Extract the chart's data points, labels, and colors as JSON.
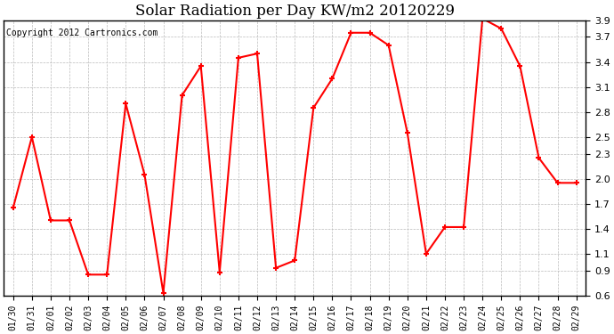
{
  "title": "Solar Radiation per Day KW/m2 20120229",
  "copyright": "Copyright 2012 Cartronics.com",
  "dates": [
    "01/30",
    "01/31",
    "02/01",
    "02/02",
    "02/03",
    "02/04",
    "02/05",
    "02/06",
    "02/07",
    "02/08",
    "02/09",
    "02/10",
    "02/11",
    "02/12",
    "02/13",
    "02/14",
    "02/15",
    "02/16",
    "02/17",
    "02/18",
    "02/19",
    "02/20",
    "02/21",
    "02/22",
    "02/23",
    "02/24",
    "02/25",
    "02/26",
    "02/27",
    "02/28",
    "02/29"
  ],
  "values": [
    1.65,
    2.5,
    1.5,
    1.5,
    0.85,
    0.85,
    2.9,
    2.05,
    0.63,
    3.0,
    3.35,
    0.88,
    3.45,
    3.5,
    0.93,
    1.02,
    2.85,
    3.2,
    3.75,
    3.75,
    3.6,
    2.55,
    1.1,
    1.42,
    1.42,
    3.92,
    3.8,
    3.35,
    2.25,
    1.95,
    1.95
  ],
  "ylim": [
    0.6,
    3.9
  ],
  "yticks": [
    0.6,
    0.9,
    1.1,
    1.4,
    1.7,
    2.0,
    2.3,
    2.5,
    2.8,
    3.1,
    3.4,
    3.7,
    3.9
  ],
  "line_color": "red",
  "marker": "+",
  "marker_size": 5,
  "marker_edge_width": 1.5,
  "line_width": 1.5,
  "bg_color": "white",
  "grid_color": "#bbbbbb",
  "title_fontsize": 12,
  "copyright_fontsize": 7,
  "tick_fontsize": 7,
  "ytick_fontsize": 8
}
